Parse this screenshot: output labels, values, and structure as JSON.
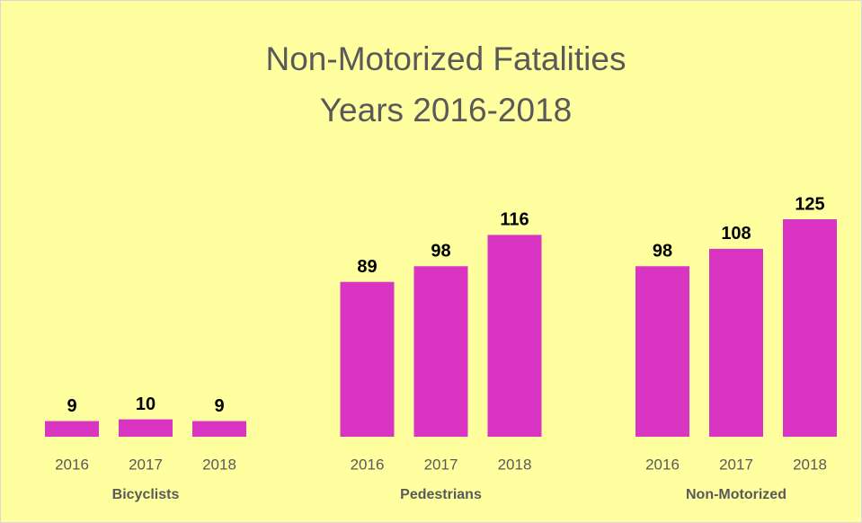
{
  "chart_data": {
    "type": "bar",
    "title": "Non-Motorized Fatalities",
    "subtitle": "Years 2016-2018",
    "color": "#d934c2",
    "groups": [
      {
        "name": "Bicyclists",
        "categories": [
          "2016",
          "2017",
          "2018"
        ],
        "values": [
          9,
          10,
          9
        ]
      },
      {
        "name": "Pedestrians",
        "categories": [
          "2016",
          "2017",
          "2018"
        ],
        "values": [
          89,
          98,
          116
        ]
      },
      {
        "name": "Non-Motorized",
        "categories": [
          "2016",
          "2017",
          "2018"
        ],
        "values": [
          98,
          108,
          125
        ]
      }
    ]
  }
}
